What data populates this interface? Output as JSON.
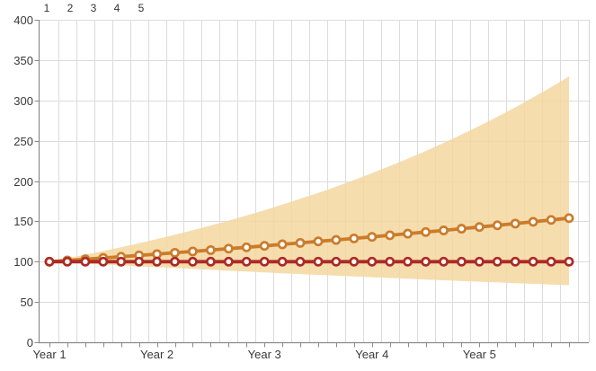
{
  "top_scale": {
    "labels": [
      "1",
      "2",
      "3",
      "4",
      "5"
    ]
  },
  "chart_data": {
    "type": "line",
    "title": "",
    "xlabel": "",
    "ylabel": "",
    "x_axis": {
      "tick_labels": [
        "Year 1",
        "Year 2",
        "Year 3",
        "Year 4",
        "Year 5"
      ],
      "tick_label_indices": [
        0,
        6,
        12,
        18,
        24
      ],
      "points_per_year": 6,
      "n_points": 30
    },
    "y_axis": {
      "ticks": [
        0,
        50,
        100,
        150,
        200,
        250,
        300,
        350,
        400
      ],
      "ylim": [
        0,
        400
      ]
    },
    "grid": "both",
    "legend_position": "none",
    "series": [
      {
        "name": "projected-growth",
        "color": "#CB7C2B",
        "marker": "circle",
        "values": [
          100,
          101.5,
          103,
          104.6,
          106.1,
          107.7,
          109.3,
          111,
          112.6,
          114.3,
          116.1,
          117.8,
          119.6,
          121.4,
          123.2,
          125.1,
          126.9,
          128.8,
          130.7,
          132.7,
          134.7,
          136.7,
          138.7,
          140.8,
          142.9,
          145.1,
          147.2,
          149.4,
          151.7,
          154
        ]
      },
      {
        "name": "baseline",
        "color": "#AC2B24",
        "marker": "circle",
        "values": [
          100,
          100,
          100,
          100,
          100,
          100,
          100,
          100,
          100,
          100,
          100,
          100,
          100,
          100,
          100,
          100,
          100,
          100,
          100,
          100,
          100,
          100,
          100,
          100,
          100,
          100,
          100,
          100,
          100,
          100
        ]
      }
    ],
    "band": {
      "name": "projection-range",
      "color": "#F5D7A0",
      "upper": [
        100,
        104.2,
        108.6,
        113.1,
        117.9,
        122.8,
        128,
        133.4,
        139,
        144.8,
        150.9,
        157.2,
        163.8,
        170.7,
        177.9,
        185.3,
        193.1,
        201.2,
        209.7,
        218.5,
        227.7,
        237.2,
        247.2,
        257.6,
        268.4,
        279.7,
        291.4,
        303.7,
        316.4,
        329.7
      ],
      "lower": [
        100,
        98.8,
        97.6,
        96.5,
        95.3,
        94.2,
        93.1,
        92,
        90.9,
        89.8,
        88.7,
        87.7,
        86.6,
        85.6,
        84.6,
        83.6,
        82.6,
        81.6,
        80.7,
        79.7,
        78.8,
        77.8,
        76.9,
        76,
        75.1,
        74.2,
        73.3,
        72.5,
        71.6,
        70.8
      ]
    }
  },
  "colors": {
    "band": "#F5D7A0",
    "projected_line": "#CB7C2B",
    "baseline_line": "#AC2B24",
    "gridline": "#DCDCDC",
    "axis": "#8A8A8A",
    "right_border": "#D6D6D6",
    "tick_text": "#3A3A3A",
    "marker_fill": "#FFFFFF"
  }
}
